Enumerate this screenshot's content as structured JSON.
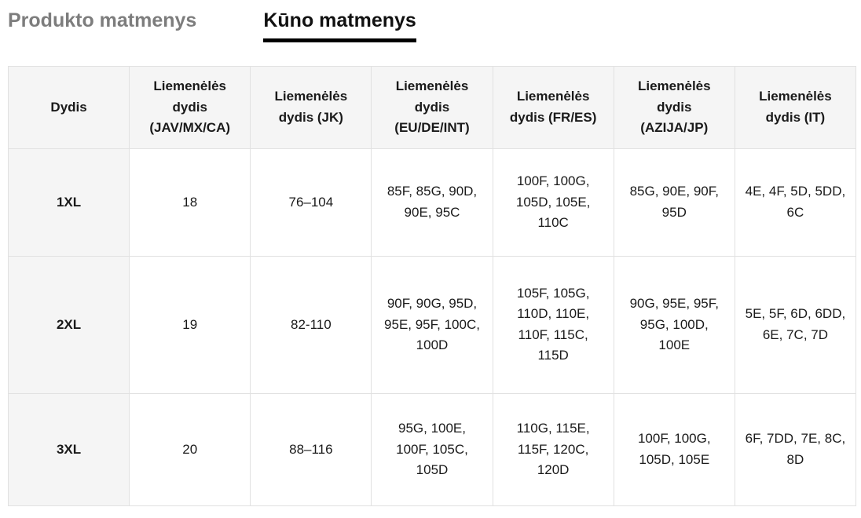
{
  "tabs": [
    {
      "label": "Produkto matmenys",
      "active": false
    },
    {
      "label": "Kūno matmenys",
      "active": true
    }
  ],
  "colors": {
    "active_tab": "#111111",
    "inactive_tab": "#7d7d7d",
    "header_bg": "#f5f5f5",
    "border": "#e1e1e1"
  },
  "table": {
    "columns": [
      "Dydis",
      "Liemenėlės dydis (JAV/MX/CA)",
      "Liemenėlės dydis (JK)",
      "Liemenėlės dydis (EU/DE/INT)",
      "Liemenėlės dydis (FR/ES)",
      "Liemenėlės dydis (AZIJA/JP)",
      "Liemenėlės dydis (IT)"
    ],
    "rows": [
      {
        "cells": [
          "1XL",
          "18",
          "76–104",
          "85F, 85G, 90D, 90E, 95C",
          "100F, 100G, 105D, 105E, 110C",
          "85G, 90E, 90F, 95D",
          "4E, 4F, 5D, 5DD, 6C"
        ]
      },
      {
        "cells": [
          "2XL",
          "19",
          "82-110",
          "90F, 90G, 95D, 95E, 95F, 100C, 100D",
          "105F, 105G, 110D, 110E, 110F, 115C, 115D",
          "90G, 95E, 95F, 95G, 100D, 100E",
          "5E, 5F, 6D, 6DD, 6E, 7C, 7D"
        ]
      },
      {
        "cells": [
          "3XL",
          "20",
          "88–116",
          "95G, 100E, 100F, 105C, 105D",
          "110G, 115E, 115F, 120C, 120D",
          "100F, 100G, 105D, 105E",
          "6F, 7DD, 7E, 8C, 8D"
        ]
      }
    ]
  }
}
